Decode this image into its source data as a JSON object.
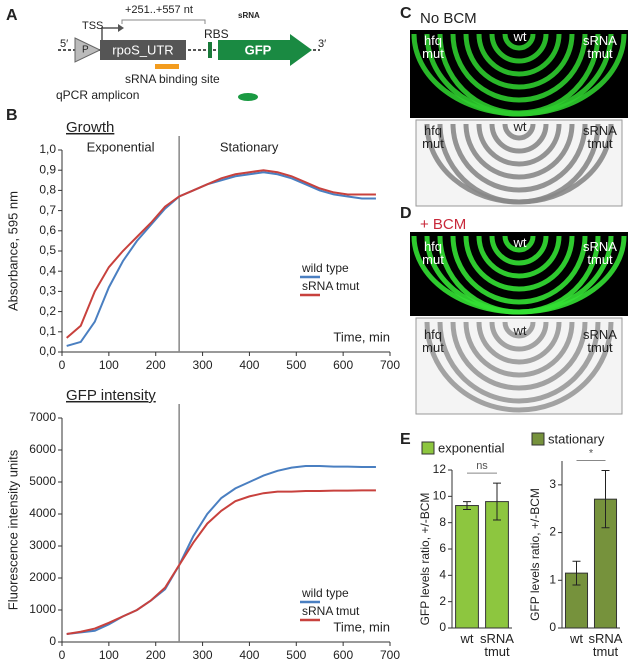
{
  "panels": {
    "a": "A",
    "b": "B",
    "c": "C",
    "d": "D",
    "e": "E"
  },
  "diagram": {
    "tss": "TSS",
    "range": "+251..+557 nt",
    "srna": "sRNA",
    "five": "5′",
    "promoter": "P",
    "utr": "rpoS_UTR",
    "rbs": "RBS",
    "gfp": "GFP",
    "three": "3′",
    "binding": "sRNA binding site",
    "amplicon": "qPCR amplicon"
  },
  "images": {
    "c": {
      "title": "No BCM",
      "hfq": "hfq mut",
      "wt": "wt",
      "tmut": "sRNA tmut"
    },
    "d": {
      "title": "+ BCM",
      "hfq": "hfq mut",
      "wt": "wt",
      "tmut": "sRNA tmut"
    }
  },
  "chart_data": [
    {
      "type": "line",
      "title": "Growth",
      "xlabel": "Time, min",
      "ylabel": "Absorbance, 595 nm",
      "phases": [
        "Exponential",
        "Stationary"
      ],
      "vline": 250,
      "x": [
        10,
        40,
        70,
        100,
        130,
        160,
        190,
        220,
        250,
        280,
        310,
        340,
        370,
        400,
        430,
        460,
        490,
        520,
        550,
        580,
        610,
        640,
        670
      ],
      "series": [
        {
          "name": "wild type",
          "color": "#4a7fc1",
          "values": [
            0.03,
            0.05,
            0.15,
            0.32,
            0.45,
            0.55,
            0.63,
            0.71,
            0.77,
            0.8,
            0.83,
            0.85,
            0.87,
            0.88,
            0.89,
            0.88,
            0.86,
            0.83,
            0.8,
            0.78,
            0.77,
            0.76,
            0.76
          ]
        },
        {
          "name": "sRNA tmut",
          "color": "#c8413d",
          "values": [
            0.07,
            0.13,
            0.3,
            0.42,
            0.5,
            0.57,
            0.64,
            0.72,
            0.77,
            0.8,
            0.83,
            0.86,
            0.88,
            0.89,
            0.9,
            0.89,
            0.87,
            0.84,
            0.81,
            0.79,
            0.78,
            0.78,
            0.78
          ]
        }
      ],
      "xlim": [
        0,
        700
      ],
      "xticks": [
        0,
        100,
        200,
        300,
        400,
        500,
        600,
        700
      ],
      "ylim": [
        0,
        1.0
      ],
      "yticks": [
        {
          "value": 0,
          "label": "0,0"
        },
        {
          "value": 0.1,
          "label": "0,1"
        },
        {
          "value": 0.2,
          "label": "0,2"
        },
        {
          "value": 0.3,
          "label": "0,3"
        },
        {
          "value": 0.4,
          "label": "0,4"
        },
        {
          "value": 0.5,
          "label": "0,5"
        },
        {
          "value": 0.6,
          "label": "0,6"
        },
        {
          "value": 0.7,
          "label": "0,7"
        },
        {
          "value": 0.8,
          "label": "0,8"
        },
        {
          "value": 0.9,
          "label": "0,9"
        },
        {
          "value": 1.0,
          "label": "1,0"
        }
      ],
      "legend": "center right"
    },
    {
      "type": "line",
      "title": "GFP intensity",
      "xlabel": "Time, min",
      "ylabel": "Fluorescence intensity units",
      "vline": 250,
      "x": [
        10,
        40,
        70,
        100,
        130,
        160,
        190,
        220,
        250,
        280,
        310,
        340,
        370,
        400,
        430,
        460,
        490,
        520,
        550,
        580,
        610,
        640,
        670
      ],
      "series": [
        {
          "name": "wild type",
          "color": "#4a7fc1",
          "values": [
            250,
            300,
            350,
            550,
            800,
            1000,
            1300,
            1650,
            2400,
            3300,
            4000,
            4500,
            4800,
            5000,
            5200,
            5350,
            5450,
            5500,
            5500,
            5480,
            5480,
            5470,
            5470
          ]
        },
        {
          "name": "sRNA tmut",
          "color": "#c8413d",
          "values": [
            250,
            320,
            420,
            600,
            800,
            1000,
            1300,
            1700,
            2400,
            3100,
            3700,
            4100,
            4400,
            4550,
            4650,
            4700,
            4700,
            4720,
            4720,
            4730,
            4730,
            4740,
            4740
          ]
        }
      ],
      "xlim": [
        0,
        700
      ],
      "xticks": [
        0,
        100,
        200,
        300,
        400,
        500,
        600,
        700
      ],
      "ylim": [
        0,
        7000
      ],
      "yticks": [
        0,
        1000,
        2000,
        3000,
        4000,
        5000,
        6000,
        7000
      ],
      "legend": "lower right"
    },
    {
      "type": "bar",
      "legend_label": "exponential",
      "ylabel": "GFP levels ratio, +/-BCM",
      "color": "#8dc63f",
      "significance": "ns",
      "categories": [
        "wt",
        "sRNA tmut"
      ],
      "values": [
        9.3,
        9.6
      ],
      "errors": [
        0.3,
        1.4
      ],
      "ylim": [
        0,
        12
      ],
      "yticks": [
        0,
        2,
        4,
        6,
        8,
        10,
        12
      ]
    },
    {
      "type": "bar",
      "legend_label": "stationary",
      "ylabel": "GFP levels ratio, +/-BCM",
      "color": "#76923c",
      "significance": "*",
      "categories": [
        "wt",
        "sRNA tmut"
      ],
      "values": [
        1.15,
        2.7
      ],
      "errors": [
        0.25,
        0.6
      ],
      "ylim": [
        0,
        3.5
      ],
      "yticks": [
        0,
        1,
        2,
        3
      ]
    }
  ]
}
